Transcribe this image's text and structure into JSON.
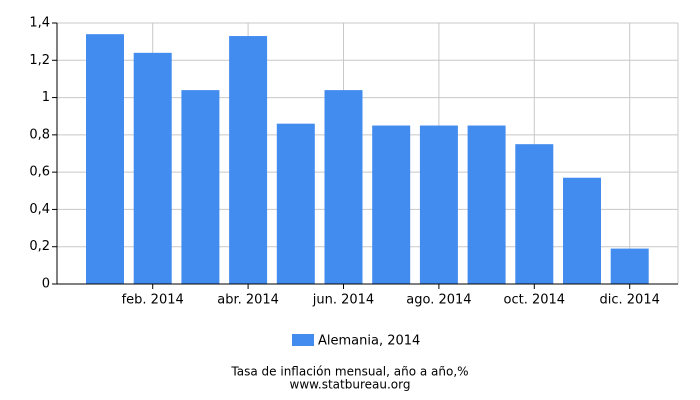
{
  "chart_data": {
    "type": "bar",
    "categories": [
      null,
      "feb. 2014",
      null,
      "abr. 2014",
      null,
      "jun. 2014",
      null,
      "ago. 2014",
      null,
      "oct. 2014",
      null,
      "dic. 2014"
    ],
    "series": [
      {
        "name": "Alemania, 2014",
        "color": "#428bef",
        "values": [
          1.34,
          1.24,
          1.04,
          1.33,
          0.86,
          1.04,
          0.85,
          0.85,
          0.85,
          0.75,
          0.57,
          0.19
        ]
      }
    ],
    "ylim": [
      0,
      1.4
    ],
    "yticks": [
      0,
      {
        "value": 0.2,
        "label": "0,2"
      },
      {
        "value": 0.4,
        "label": "0,4"
      },
      {
        "value": 0.6,
        "label": "0,6"
      },
      {
        "value": 0.8,
        "label": "0,8"
      },
      1,
      {
        "value": 1.2,
        "label": "1,2"
      },
      {
        "value": 1.4,
        "label": "1,4"
      }
    ],
    "grid": true,
    "footer": [
      "Tasa de inflación mensual, año a año,%",
      "www.statbureau.org"
    ]
  }
}
